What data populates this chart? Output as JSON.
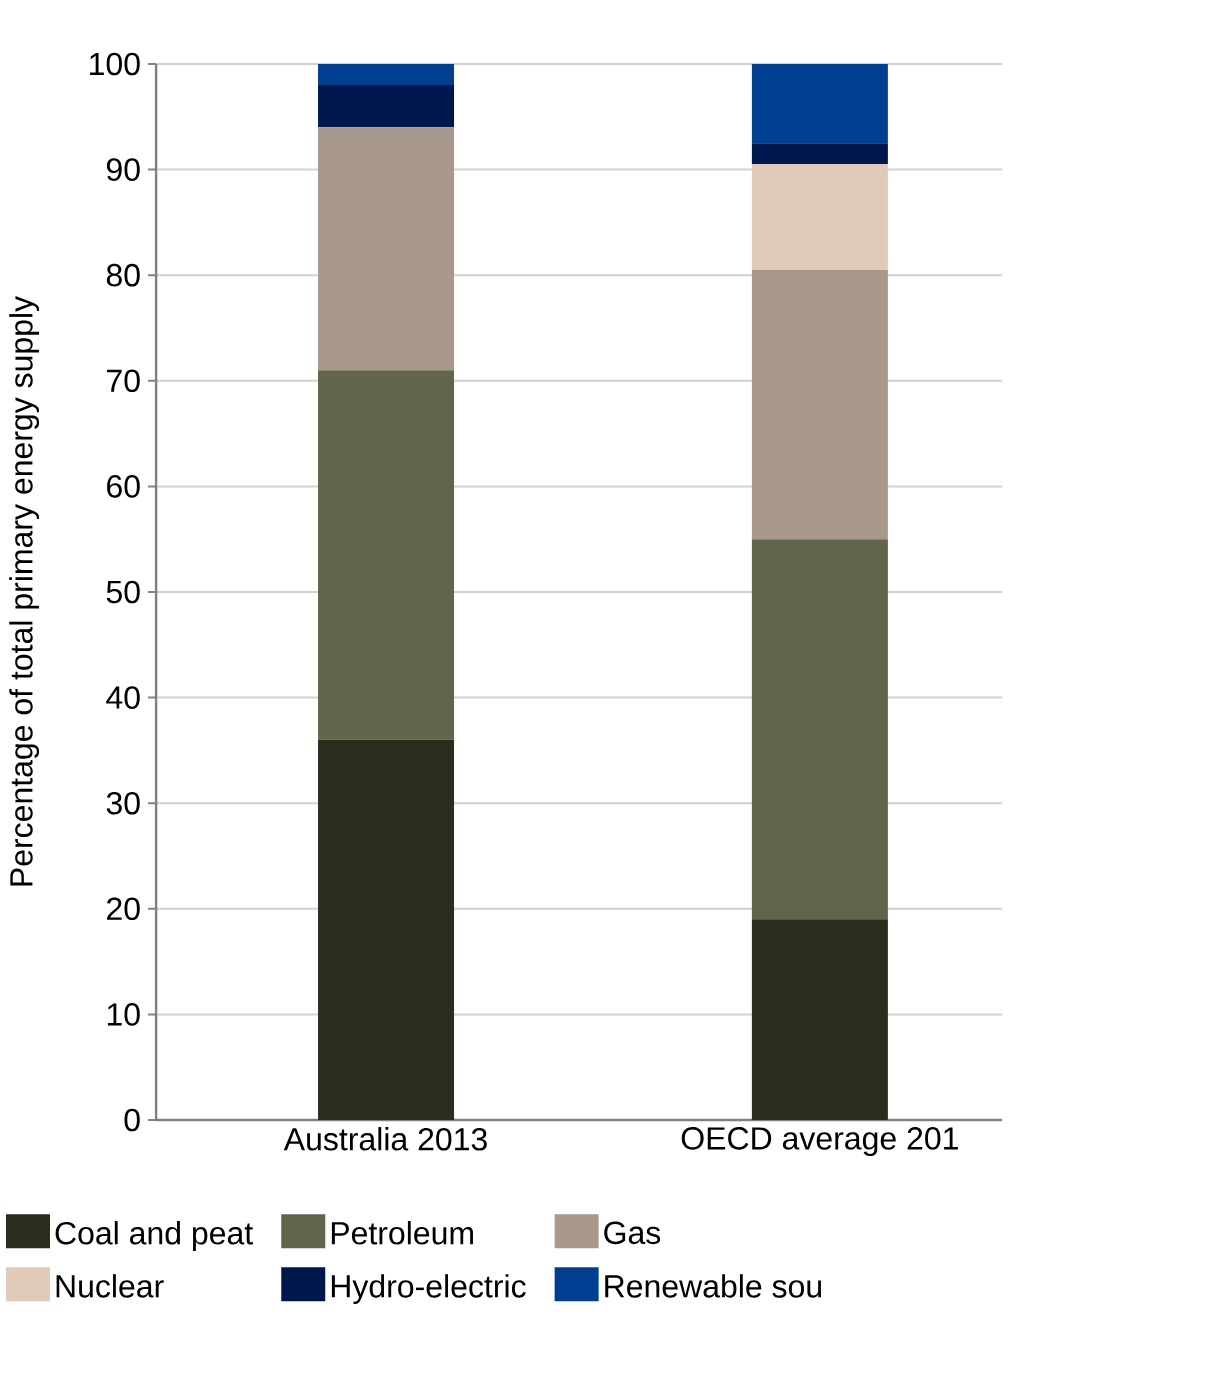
{
  "chart_data": {
    "type": "bar",
    "stacked": true,
    "ylabel": "Percentage of total primary energy supply",
    "categories": [
      "Australia 2013",
      "OECD average 201"
    ],
    "series": [
      {
        "name": "Coal and peat",
        "color": "#2a2c1c",
        "values": [
          36,
          19
        ]
      },
      {
        "name": "Petroleum",
        "color": "#61654a",
        "values": [
          35,
          36
        ]
      },
      {
        "name": "Gas",
        "color": "#a8978b",
        "values": [
          23,
          25.5
        ]
      },
      {
        "name": "Nuclear",
        "color": "#e0cbb8",
        "values": [
          0,
          10
        ]
      },
      {
        "name": "Hydro-electric",
        "color": "#00174d",
        "values": [
          4,
          2
        ]
      },
      {
        "name": "Renewable sou",
        "color": "#003f8f",
        "values": [
          2,
          7.5
        ]
      }
    ],
    "ylim": [
      0,
      100
    ],
    "yticks": [
      0,
      10,
      20,
      30,
      40,
      50,
      60,
      70,
      80,
      90,
      100
    ],
    "grid": "y",
    "legend": "bottom"
  }
}
